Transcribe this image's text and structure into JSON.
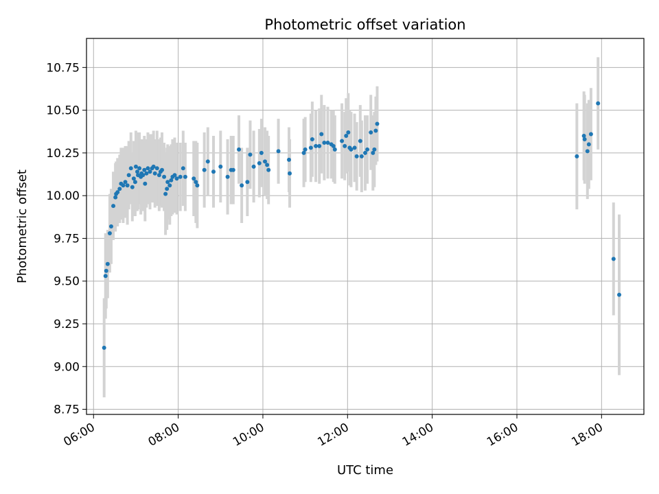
{
  "chart_data": {
    "type": "scatter",
    "title": "Photometric offset variation",
    "xlabel": "UTC time",
    "ylabel": "Photometric offset",
    "x_unit": "hours UTC (same day)",
    "xlim": [
      "05:50",
      "19:00"
    ],
    "ylim": [
      8.72,
      10.92
    ],
    "x_ticks": [
      "06:00",
      "08:00",
      "10:00",
      "12:00",
      "14:00",
      "16:00",
      "18:00"
    ],
    "y_ticks": [
      "8.75",
      "9.00",
      "9.25",
      "9.50",
      "9.75",
      "10.00",
      "10.25",
      "10.50",
      "10.75"
    ],
    "grid": true,
    "legend": "none",
    "colors": {
      "points": "#1f77b4",
      "errorbars": "#d3d3d3",
      "grid": "#b0b0b0"
    },
    "series": [
      {
        "marker": "point",
        "errorbars": "vertical",
        "points": [
          {
            "x": "06:15",
            "y": 9.11,
            "err": 0.29
          },
          {
            "x": "06:17",
            "y": 9.53,
            "err": 0.25
          },
          {
            "x": "06:18",
            "y": 9.56,
            "err": 0.22
          },
          {
            "x": "06:20",
            "y": 9.6,
            "err": 0.2
          },
          {
            "x": "06:23",
            "y": 9.78,
            "err": 0.23
          },
          {
            "x": "06:25",
            "y": 9.82,
            "err": 0.22
          },
          {
            "x": "06:28",
            "y": 9.94,
            "err": 0.2
          },
          {
            "x": "06:31",
            "y": 9.99,
            "err": 0.2
          },
          {
            "x": "06:32",
            "y": 10.01,
            "err": 0.19
          },
          {
            "x": "06:34",
            "y": 10.02,
            "err": 0.2
          },
          {
            "x": "06:37",
            "y": 10.04,
            "err": 0.2
          },
          {
            "x": "06:39",
            "y": 10.07,
            "err": 0.21
          },
          {
            "x": "06:42",
            "y": 10.06,
            "err": 0.22
          },
          {
            "x": "06:45",
            "y": 10.08,
            "err": 0.21
          },
          {
            "x": "06:48",
            "y": 10.06,
            "err": 0.23
          },
          {
            "x": "06:50",
            "y": 10.12,
            "err": 0.2
          },
          {
            "x": "06:53",
            "y": 10.16,
            "err": 0.21
          },
          {
            "x": "06:55",
            "y": 10.05,
            "err": 0.2
          },
          {
            "x": "06:57",
            "y": 10.1,
            "err": 0.22
          },
          {
            "x": "06:59",
            "y": 10.08,
            "err": 0.2
          },
          {
            "x": "07:00",
            "y": 10.17,
            "err": 0.21
          },
          {
            "x": "07:02",
            "y": 10.14,
            "err": 0.23
          },
          {
            "x": "07:03",
            "y": 10.12,
            "err": 0.2
          },
          {
            "x": "07:05",
            "y": 10.16,
            "err": 0.21
          },
          {
            "x": "07:07",
            "y": 10.11,
            "err": 0.22
          },
          {
            "x": "07:08",
            "y": 10.13,
            "err": 0.2
          },
          {
            "x": "07:10",
            "y": 10.12,
            "err": 0.21
          },
          {
            "x": "07:12",
            "y": 10.15,
            "err": 0.2
          },
          {
            "x": "07:13",
            "y": 10.07,
            "err": 0.22
          },
          {
            "x": "07:15",
            "y": 10.13,
            "err": 0.2
          },
          {
            "x": "07:17",
            "y": 10.16,
            "err": 0.21
          },
          {
            "x": "07:20",
            "y": 10.14,
            "err": 0.22
          },
          {
            "x": "07:23",
            "y": 10.16,
            "err": 0.2
          },
          {
            "x": "07:25",
            "y": 10.17,
            "err": 0.21
          },
          {
            "x": "07:27",
            "y": 10.13,
            "err": 0.2
          },
          {
            "x": "07:30",
            "y": 10.16,
            "err": 0.22
          },
          {
            "x": "07:33",
            "y": 10.12,
            "err": 0.21
          },
          {
            "x": "07:35",
            "y": 10.14,
            "err": 0.2
          },
          {
            "x": "07:37",
            "y": 10.15,
            "err": 0.22
          },
          {
            "x": "07:40",
            "y": 10.11,
            "err": 0.2
          },
          {
            "x": "07:42",
            "y": 10.01,
            "err": 0.24
          },
          {
            "x": "07:44",
            "y": 10.04,
            "err": 0.24
          },
          {
            "x": "07:45",
            "y": 10.08,
            "err": 0.22
          },
          {
            "x": "07:48",
            "y": 10.06,
            "err": 0.23
          },
          {
            "x": "07:50",
            "y": 10.09,
            "err": 0.21
          },
          {
            "x": "07:52",
            "y": 10.11,
            "err": 0.22
          },
          {
            "x": "07:55",
            "y": 10.12,
            "err": 0.22
          },
          {
            "x": "07:58",
            "y": 10.1,
            "err": 0.21
          },
          {
            "x": "08:03",
            "y": 10.11,
            "err": 0.2
          },
          {
            "x": "08:07",
            "y": 10.16,
            "err": 0.22
          },
          {
            "x": "08:10",
            "y": 10.11,
            "err": 0.2
          },
          {
            "x": "08:22",
            "y": 10.1,
            "err": 0.22
          },
          {
            "x": "08:25",
            "y": 10.08,
            "err": 0.24
          },
          {
            "x": "08:27",
            "y": 10.06,
            "err": 0.25
          },
          {
            "x": "08:37",
            "y": 10.15,
            "err": 0.22
          },
          {
            "x": "08:42",
            "y": 10.2,
            "err": 0.2
          },
          {
            "x": "08:50",
            "y": 10.14,
            "err": 0.21
          },
          {
            "x": "09:00",
            "y": 10.17,
            "err": 0.21
          },
          {
            "x": "09:10",
            "y": 10.11,
            "err": 0.22
          },
          {
            "x": "09:15",
            "y": 10.15,
            "err": 0.2
          },
          {
            "x": "09:18",
            "y": 10.15,
            "err": 0.2
          },
          {
            "x": "09:26",
            "y": 10.27,
            "err": 0.2
          },
          {
            "x": "09:30",
            "y": 10.06,
            "err": 0.22
          },
          {
            "x": "09:38",
            "y": 10.08,
            "err": 0.2
          },
          {
            "x": "09:42",
            "y": 10.24,
            "err": 0.2
          },
          {
            "x": "09:47",
            "y": 10.17,
            "err": 0.21
          },
          {
            "x": "09:55",
            "y": 10.19,
            "err": 0.2
          },
          {
            "x": "09:58",
            "y": 10.25,
            "err": 0.2
          },
          {
            "x": "10:03",
            "y": 10.2,
            "err": 0.2
          },
          {
            "x": "10:06",
            "y": 10.18,
            "err": 0.2
          },
          {
            "x": "10:08",
            "y": 10.15,
            "err": 0.2
          },
          {
            "x": "10:22",
            "y": 10.26,
            "err": 0.19
          },
          {
            "x": "10:37",
            "y": 10.21,
            "err": 0.19
          },
          {
            "x": "10:38",
            "y": 10.13,
            "err": 0.2
          },
          {
            "x": "10:58",
            "y": 10.25,
            "err": 0.2
          },
          {
            "x": "11:00",
            "y": 10.27,
            "err": 0.19
          },
          {
            "x": "11:08",
            "y": 10.28,
            "err": 0.2
          },
          {
            "x": "11:10",
            "y": 10.33,
            "err": 0.22
          },
          {
            "x": "11:15",
            "y": 10.29,
            "err": 0.21
          },
          {
            "x": "11:20",
            "y": 10.29,
            "err": 0.22
          },
          {
            "x": "11:23",
            "y": 10.36,
            "err": 0.23
          },
          {
            "x": "11:27",
            "y": 10.31,
            "err": 0.22
          },
          {
            "x": "11:32",
            "y": 10.31,
            "err": 0.21
          },
          {
            "x": "11:37",
            "y": 10.3,
            "err": 0.2
          },
          {
            "x": "11:40",
            "y": 10.29,
            "err": 0.21
          },
          {
            "x": "11:42",
            "y": 10.27,
            "err": 0.2
          },
          {
            "x": "11:52",
            "y": 10.32,
            "err": 0.22
          },
          {
            "x": "11:56",
            "y": 10.29,
            "err": 0.2
          },
          {
            "x": "11:58",
            "y": 10.35,
            "err": 0.22
          },
          {
            "x": "12:01",
            "y": 10.37,
            "err": 0.23
          },
          {
            "x": "12:03",
            "y": 10.28,
            "err": 0.22
          },
          {
            "x": "12:05",
            "y": 10.27,
            "err": 0.22
          },
          {
            "x": "12:10",
            "y": 10.28,
            "err": 0.2
          },
          {
            "x": "12:13",
            "y": 10.23,
            "err": 0.2
          },
          {
            "x": "12:18",
            "y": 10.32,
            "err": 0.21
          },
          {
            "x": "12:20",
            "y": 10.23,
            "err": 0.21
          },
          {
            "x": "12:25",
            "y": 10.25,
            "err": 0.22
          },
          {
            "x": "12:28",
            "y": 10.27,
            "err": 0.2
          },
          {
            "x": "12:33",
            "y": 10.37,
            "err": 0.22
          },
          {
            "x": "12:36",
            "y": 10.25,
            "err": 0.22
          },
          {
            "x": "12:38",
            "y": 10.27,
            "err": 0.22
          },
          {
            "x": "12:40",
            "y": 10.38,
            "err": 0.2
          },
          {
            "x": "12:42",
            "y": 10.42,
            "err": 0.22
          },
          {
            "x": "17:25",
            "y": 10.23,
            "err": 0.31
          },
          {
            "x": "17:35",
            "y": 10.35,
            "err": 0.26
          },
          {
            "x": "17:36",
            "y": 10.33,
            "err": 0.26
          },
          {
            "x": "17:40",
            "y": 10.26,
            "err": 0.28
          },
          {
            "x": "17:42",
            "y": 10.3,
            "err": 0.26
          },
          {
            "x": "17:45",
            "y": 10.36,
            "err": 0.27
          },
          {
            "x": "17:55",
            "y": 10.54,
            "err": 0.27
          },
          {
            "x": "18:17",
            "y": 9.63,
            "err": 0.33
          },
          {
            "x": "18:25",
            "y": 9.42,
            "err": 0.47
          }
        ]
      }
    ]
  }
}
